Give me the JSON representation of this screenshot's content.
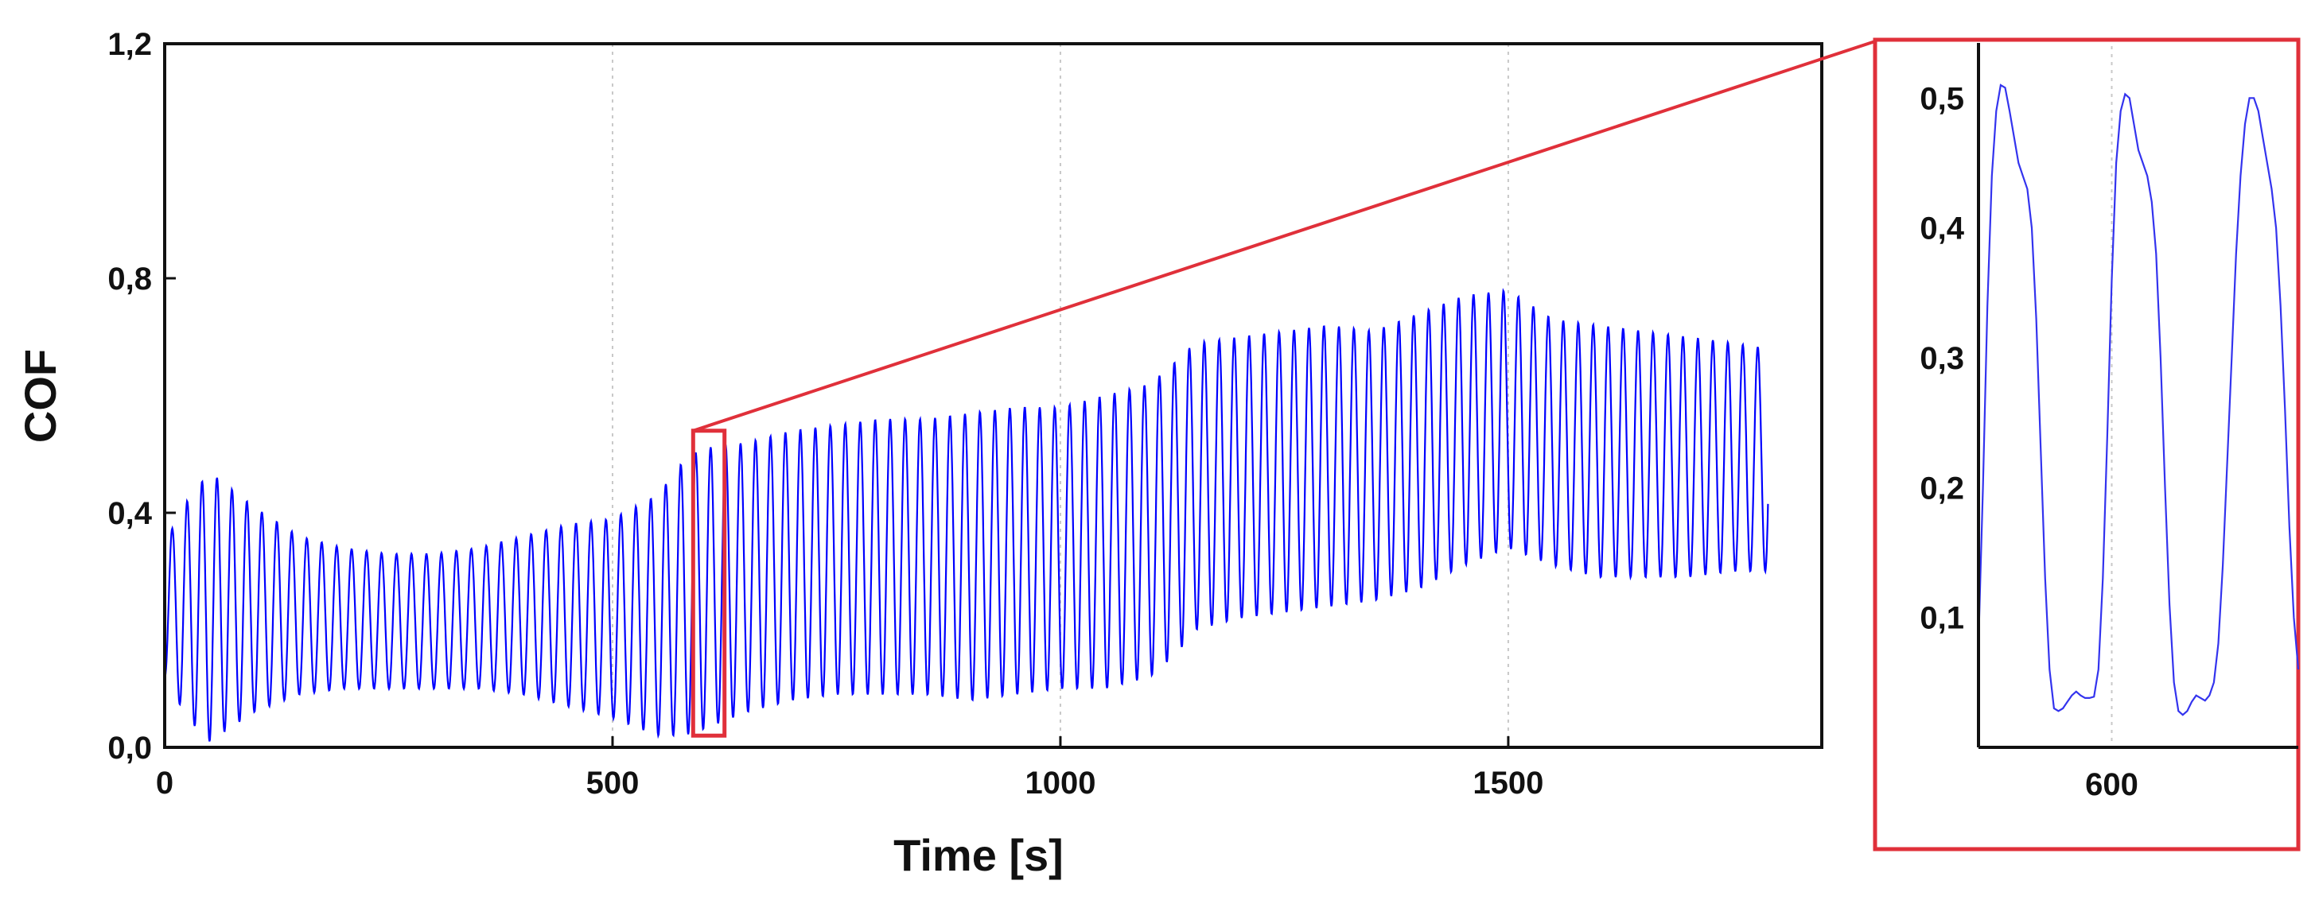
{
  "chart_data": [
    {
      "type": "line",
      "title": "",
      "xlabel": "Time [s]",
      "ylabel": "COF",
      "xlim": [
        0,
        1850
      ],
      "ylim": [
        0.0,
        1.2
      ],
      "xticks": [
        0,
        500,
        1000,
        1500
      ],
      "xtick_labels": [
        "0",
        "500",
        "1000",
        "1500"
      ],
      "yticks": [
        0.0,
        0.4,
        0.8,
        1.2
      ],
      "ytick_labels": [
        "0,0",
        "0,4",
        "0,8",
        "1,2"
      ],
      "grid": "vertical dotted",
      "line_color": "#0000ff",
      "oscillation_period_s": 16.7,
      "series": [
        {
          "envelope_time": [
            0,
            25,
            50,
            100,
            150,
            200,
            250,
            300,
            350,
            400,
            450,
            500,
            550,
            580,
            600,
            650,
            700,
            750,
            800,
            850,
            900,
            950,
            1000,
            1050,
            1100,
            1130,
            1150,
            1200,
            1250,
            1300,
            1350,
            1400,
            1450,
            1500,
            1550,
            1600,
            1650,
            1700,
            1750,
            1790
          ],
          "envelope_max": [
            0.35,
            0.42,
            0.47,
            0.41,
            0.36,
            0.34,
            0.33,
            0.33,
            0.34,
            0.36,
            0.38,
            0.39,
            0.43,
            0.49,
            0.51,
            0.52,
            0.54,
            0.55,
            0.56,
            0.56,
            0.57,
            0.58,
            0.58,
            0.6,
            0.62,
            0.66,
            0.69,
            0.7,
            0.71,
            0.72,
            0.71,
            0.74,
            0.77,
            0.78,
            0.73,
            0.72,
            0.71,
            0.7,
            0.69,
            0.68
          ],
          "envelope_min": [
            0.12,
            0.05,
            0.01,
            0.06,
            0.09,
            0.1,
            0.1,
            0.1,
            0.1,
            0.09,
            0.07,
            0.05,
            0.02,
            0.02,
            0.03,
            0.06,
            0.08,
            0.09,
            0.09,
            0.09,
            0.08,
            0.09,
            0.1,
            0.1,
            0.12,
            0.16,
            0.2,
            0.22,
            0.23,
            0.24,
            0.25,
            0.27,
            0.31,
            0.34,
            0.31,
            0.29,
            0.29,
            0.29,
            0.3,
            0.3
          ]
        }
      ],
      "zoom_window": {
        "x": [
          590,
          625
        ],
        "y": [
          0.02,
          0.54
        ],
        "color": "#e0303a"
      }
    },
    {
      "type": "line",
      "title": "",
      "xlabel": "",
      "ylabel": "",
      "xlim": [
        585,
        621
      ],
      "ylim": [
        0.0,
        0.54
      ],
      "xticks": [
        600
      ],
      "xtick_labels": [
        "600"
      ],
      "yticks": [
        0.1,
        0.2,
        0.3,
        0.4,
        0.5
      ],
      "ytick_labels": [
        "0,1",
        "0,2",
        "0,3",
        "0,4",
        "0,5"
      ],
      "grid": "vertical dotted",
      "line_color": "#3333ee",
      "frame_color": "#e0303a",
      "series": [
        {
          "x": [
            585.0,
            585.5,
            586.0,
            586.5,
            587.0,
            587.5,
            588.0,
            588.5,
            589.0,
            589.5,
            590.0,
            590.5,
            591.0,
            591.5,
            592.0,
            592.5,
            593.0,
            593.5,
            594.0,
            594.5,
            595.0,
            595.5,
            596.0,
            596.5,
            597.0,
            597.5,
            598.0,
            598.5,
            599.0,
            599.5,
            600.0,
            600.5,
            601.0,
            601.5,
            602.0,
            602.5,
            603.0,
            603.5,
            604.0,
            604.5,
            605.0,
            605.5,
            606.0,
            606.5,
            607.0,
            607.5,
            608.0,
            608.5,
            609.0,
            609.5,
            610.0,
            610.5,
            611.0,
            611.5,
            612.0,
            612.5,
            613.0,
            613.5,
            614.0,
            614.5,
            615.0,
            615.5,
            616.0,
            616.5,
            617.0,
            617.5,
            618.0,
            618.5,
            619.0,
            619.5,
            620.0,
            620.5,
            621.0
          ],
          "y": [
            0.08,
            0.2,
            0.34,
            0.44,
            0.49,
            0.51,
            0.508,
            0.49,
            0.47,
            0.45,
            0.44,
            0.43,
            0.4,
            0.33,
            0.23,
            0.13,
            0.06,
            0.03,
            0.028,
            0.03,
            0.035,
            0.04,
            0.043,
            0.04,
            0.038,
            0.038,
            0.039,
            0.06,
            0.13,
            0.24,
            0.36,
            0.45,
            0.49,
            0.503,
            0.5,
            0.48,
            0.46,
            0.45,
            0.44,
            0.42,
            0.38,
            0.3,
            0.2,
            0.11,
            0.05,
            0.028,
            0.025,
            0.028,
            0.035,
            0.04,
            0.038,
            0.036,
            0.04,
            0.05,
            0.08,
            0.14,
            0.22,
            0.3,
            0.38,
            0.44,
            0.48,
            0.5,
            0.5,
            0.49,
            0.47,
            0.45,
            0.43,
            0.4,
            0.34,
            0.26,
            0.17,
            0.1,
            0.06
          ]
        }
      ]
    }
  ]
}
